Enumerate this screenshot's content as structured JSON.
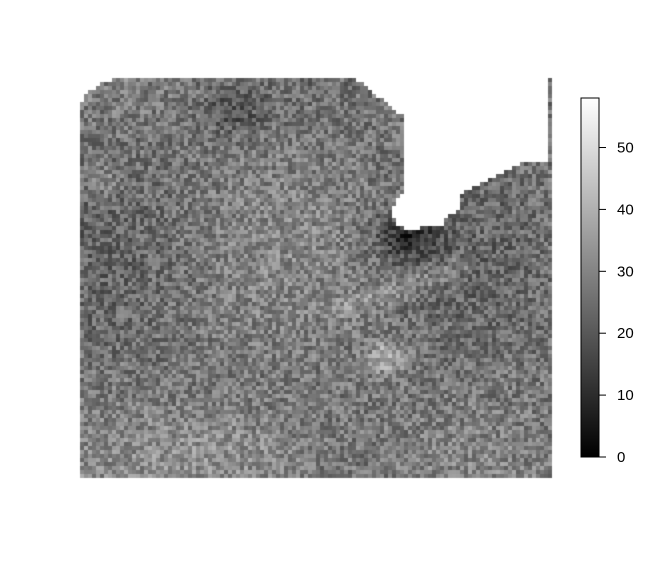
{
  "chart_data": {
    "type": "heatmap",
    "colormap": "grayscale (black to white)",
    "value_range": [
      0,
      58
    ],
    "colorbar": {
      "ticks": [
        0,
        10,
        20,
        30,
        40,
        50
      ],
      "tick_labels": [
        "0",
        "10",
        "20",
        "30",
        "40",
        "50"
      ]
    },
    "title": "",
    "xlabel": "",
    "ylabel": "",
    "missing_values": "white (NA region, upper right notch and top-left corner)",
    "typical_value": 28,
    "features": [
      {
        "description": "dark low-value band along coastline notch",
        "value": 12
      },
      {
        "description": "bright streak center-right",
        "value": 45
      },
      {
        "description": "brighter area near bottom",
        "value": 38
      }
    ]
  }
}
